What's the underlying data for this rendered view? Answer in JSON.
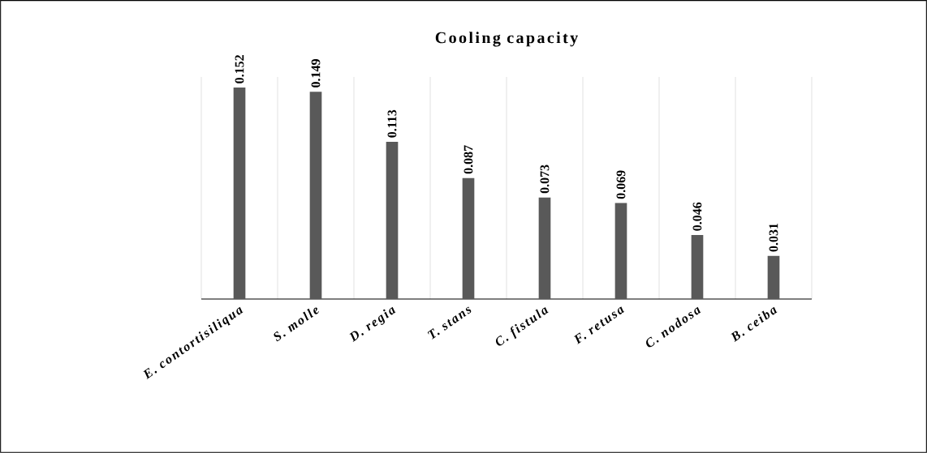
{
  "chart_data": {
    "type": "bar",
    "title": "Cooling capacity",
    "categories": [
      "E. contortisiliqua",
      "S. molle",
      "D. regia",
      "T. stans",
      "C. fistula",
      "F. retusa",
      "C. nodosa",
      "B. ceiba"
    ],
    "values": [
      0.152,
      0.149,
      0.113,
      0.087,
      0.073,
      0.069,
      0.046,
      0.031
    ],
    "color": "#595959",
    "data_labels": true,
    "grid": "x"
  }
}
